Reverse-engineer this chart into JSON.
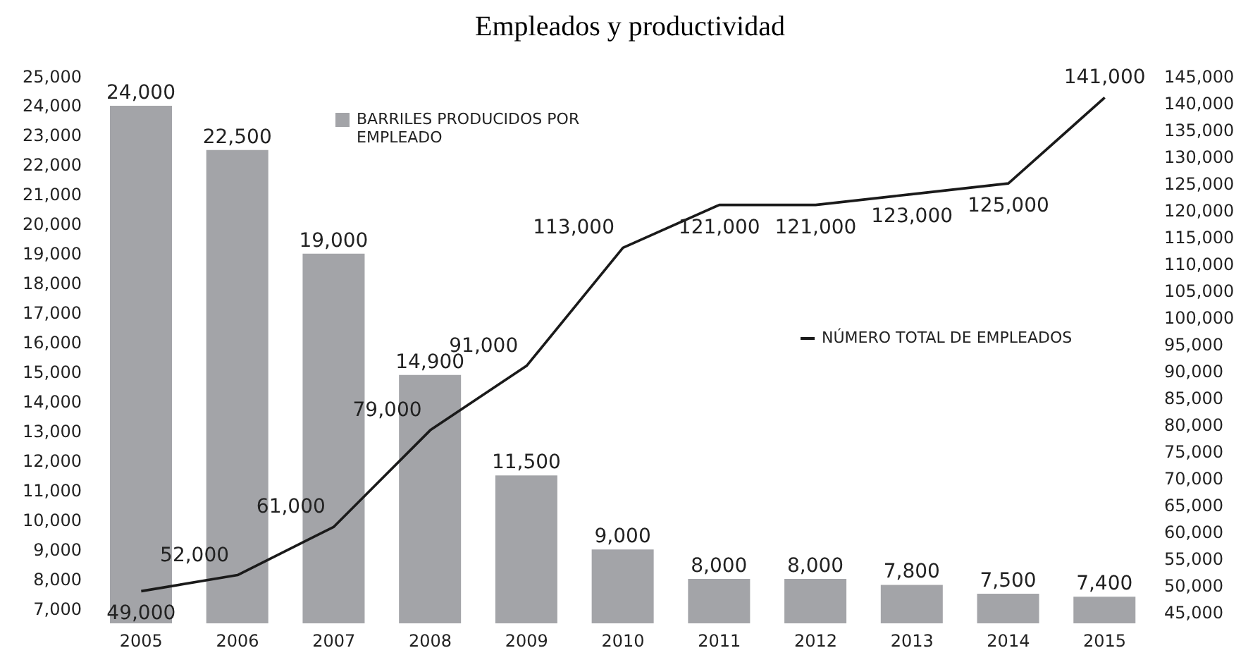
{
  "chart_data": {
    "type": "bar",
    "title": "Empleados y productividad",
    "categories": [
      "2005",
      "2006",
      "2007",
      "2008",
      "2009",
      "2010",
      "2011",
      "2012",
      "2013",
      "2014",
      "2015"
    ],
    "series": [
      {
        "name": "BARRILES PRODUCIDOS POR EMPLEADO",
        "color": "#a3a4a8",
        "values": [
          24000,
          22500,
          19000,
          14900,
          11500,
          9000,
          8000,
          8000,
          7800,
          7500,
          7400
        ],
        "value_labels": [
          "24,000",
          "22,500",
          "19,000",
          "14,900",
          "11,500",
          "9,000",
          "8,000",
          "8,000",
          "7,800",
          "7,500",
          "7,400"
        ]
      },
      {
        "name": "NÚMERO TOTAL DE EMPLEADOS",
        "type": "line",
        "axis": "y2",
        "color": "#1a1a1a",
        "values": [
          49000,
          52000,
          61000,
          79000,
          91000,
          113000,
          121000,
          121000,
          123000,
          125000,
          141000
        ],
        "value_labels": [
          "49,000",
          "52,000",
          "61,000",
          "79,000",
          "91,000",
          "113,000",
          "121,000",
          "121,000",
          "123,000",
          "125,000",
          "141,000"
        ]
      }
    ],
    "ylim": [
      6500,
      25000
    ],
    "yticks": [
      {
        "value": 7000,
        "label": "7,000"
      },
      {
        "value": 8000,
        "label": "8,000"
      },
      {
        "value": 9000,
        "label": "9,000"
      },
      {
        "value": 10000,
        "label": "10,000"
      },
      {
        "value": 11000,
        "label": "11,000"
      },
      {
        "value": 12000,
        "label": "12,000"
      },
      {
        "value": 13000,
        "label": "13,000"
      },
      {
        "value": 14000,
        "label": "14,000"
      },
      {
        "value": 15000,
        "label": "15,000"
      },
      {
        "value": 16000,
        "label": "16,000"
      },
      {
        "value": 17000,
        "label": "17,000"
      },
      {
        "value": 18000,
        "label": "18,000"
      },
      {
        "value": 19000,
        "label": "19,000"
      },
      {
        "value": 20000,
        "label": "20,000"
      },
      {
        "value": 21000,
        "label": "21,000"
      },
      {
        "value": 22000,
        "label": "22,000"
      },
      {
        "value": 23000,
        "label": "23,000"
      },
      {
        "value": 24000,
        "label": "24,000"
      },
      {
        "value": 25000,
        "label": "25,000"
      }
    ],
    "y2lim": [
      43000,
      145000
    ],
    "y2ticks": [
      {
        "value": 45000,
        "label": "45,000"
      },
      {
        "value": 50000,
        "label": "50,000"
      },
      {
        "value": 55000,
        "label": "55,000"
      },
      {
        "value": 60000,
        "label": "60,000"
      },
      {
        "value": 65000,
        "label": "65,000"
      },
      {
        "value": 70000,
        "label": "70,000"
      },
      {
        "value": 75000,
        "label": "75,000"
      },
      {
        "value": 80000,
        "label": "80,000"
      },
      {
        "value": 85000,
        "label": "85,000"
      },
      {
        "value": 90000,
        "label": "90,000"
      },
      {
        "value": 95000,
        "label": "95,000"
      },
      {
        "value": 100000,
        "label": "100,000"
      },
      {
        "value": 105000,
        "label": "105,000"
      },
      {
        "value": 110000,
        "label": "110,000"
      },
      {
        "value": 115000,
        "label": "115,000"
      },
      {
        "value": 120000,
        "label": "120,000"
      },
      {
        "value": 125000,
        "label": "125,000"
      },
      {
        "value": 130000,
        "label": "130,000"
      },
      {
        "value": 135000,
        "label": "135,000"
      },
      {
        "value": 140000,
        "label": "140,000"
      },
      {
        "value": 145000,
        "label": "145,000"
      }
    ],
    "grid": false,
    "legend": "top",
    "marker": "none",
    "line_style": "solid"
  }
}
